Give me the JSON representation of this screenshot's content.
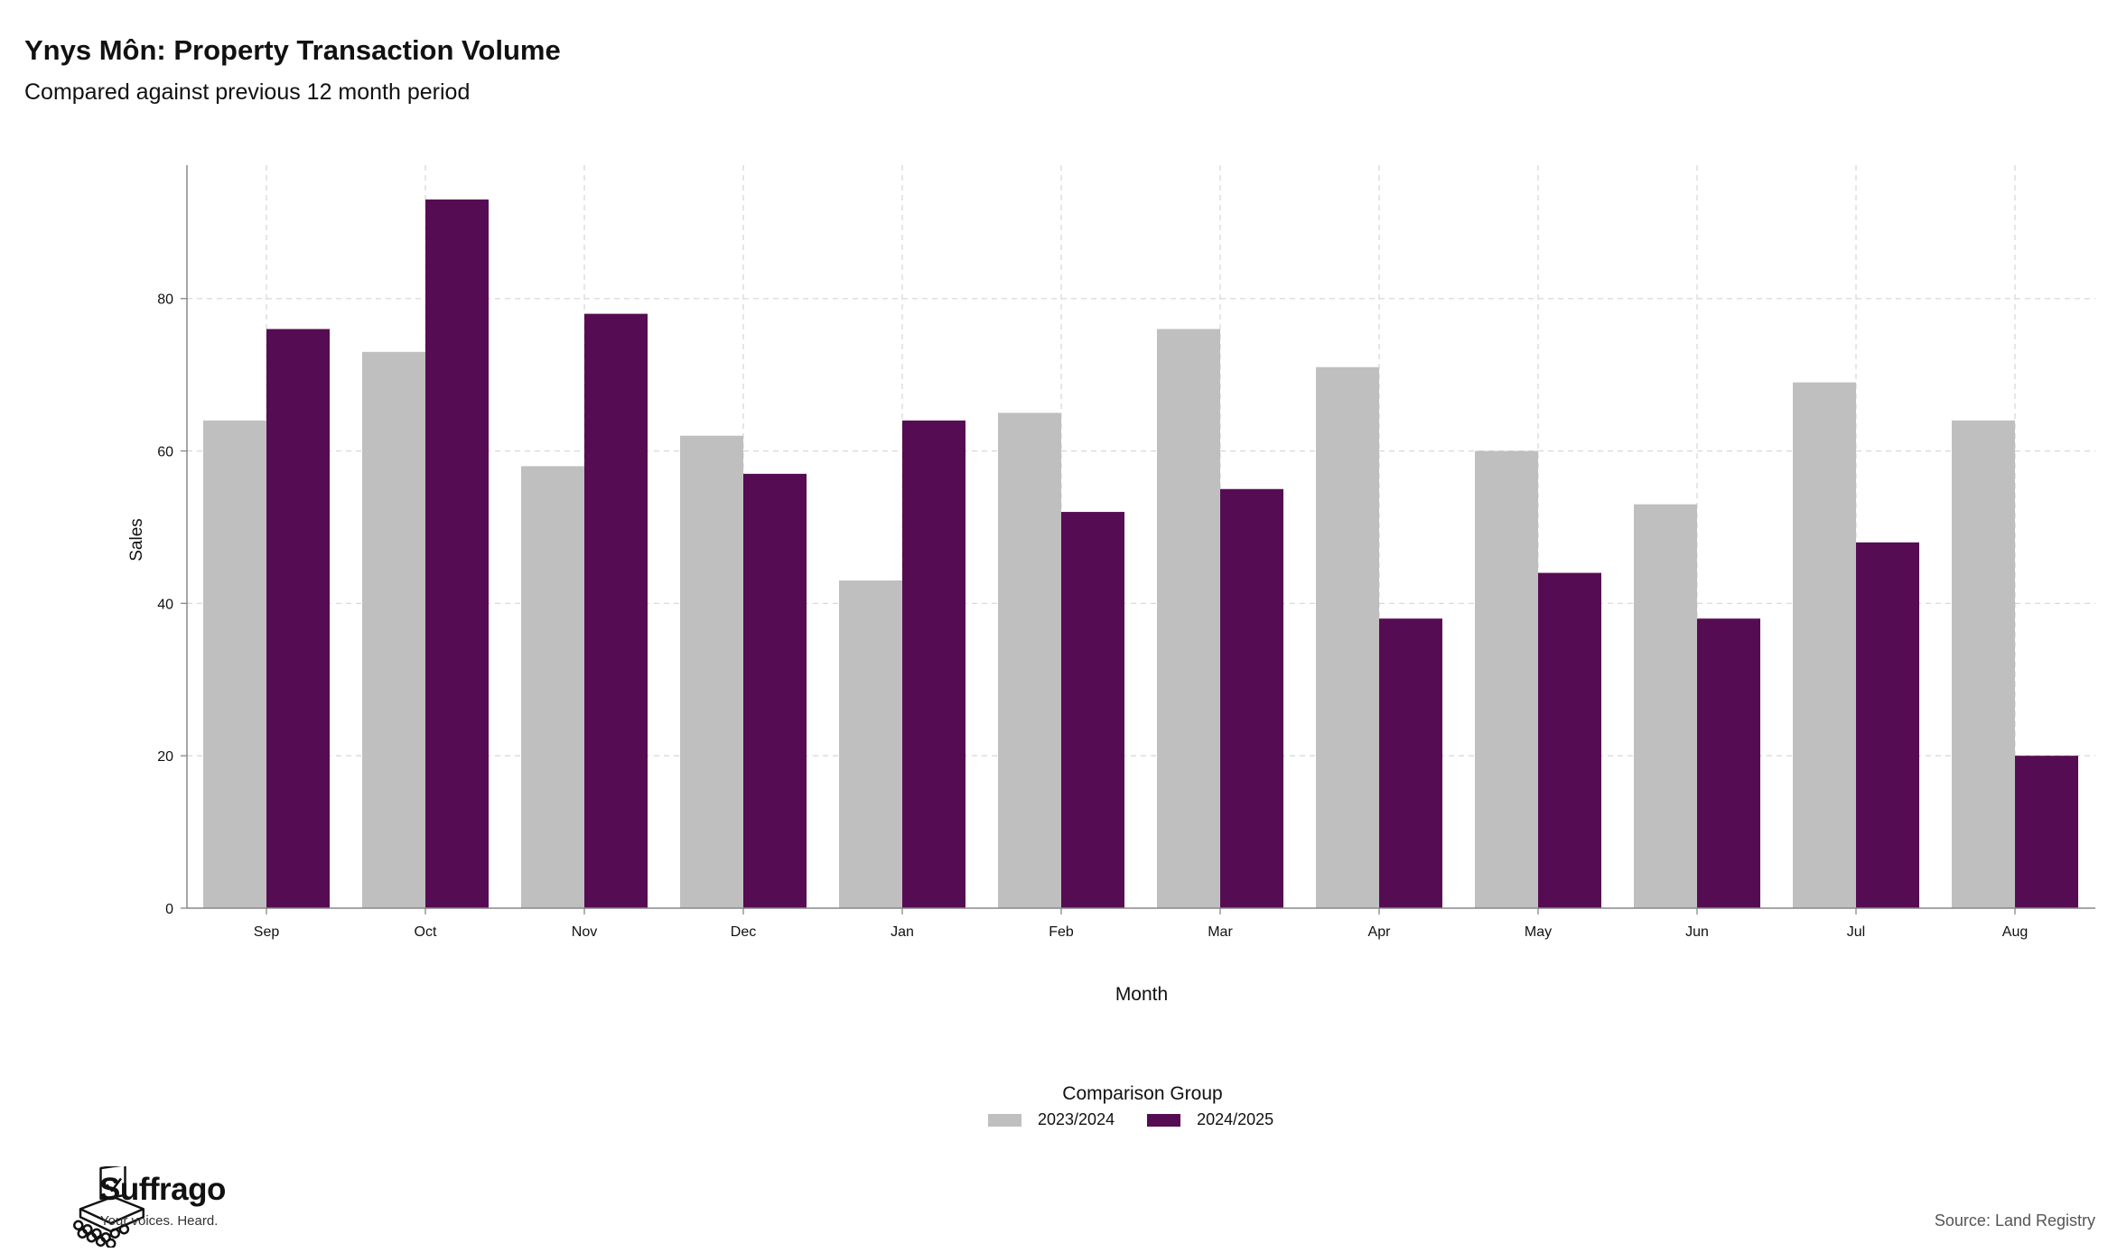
{
  "header": {
    "title": "Ynys Môn: Property Transaction Volume",
    "subtitle": "Compared against previous 12 month period"
  },
  "chart_data": {
    "type": "bar",
    "categories": [
      "Sep",
      "Oct",
      "Nov",
      "Dec",
      "Jan",
      "Feb",
      "Mar",
      "Apr",
      "May",
      "Jun",
      "Jul",
      "Aug"
    ],
    "series": [
      {
        "name": "2023/2024",
        "color": "#bfbfbf",
        "values": [
          64,
          73,
          58,
          62,
          43,
          65,
          76,
          71,
          60,
          53,
          69,
          64
        ]
      },
      {
        "name": "2024/2025",
        "color": "#560c52",
        "values": [
          76,
          93,
          78,
          57,
          64,
          52,
          55,
          38,
          44,
          38,
          48,
          20
        ]
      }
    ],
    "xlabel": "Month",
    "ylabel": "Sales",
    "ylim": [
      0,
      97.5
    ],
    "yticks": [
      0,
      20,
      40,
      60,
      80
    ],
    "grid": true,
    "legend": {
      "title": "Comparison Group",
      "position": "bottom"
    }
  },
  "branding": {
    "name": "Suffrago",
    "tagline": "Your voices. Heard."
  },
  "source": "Source: Land Registry"
}
